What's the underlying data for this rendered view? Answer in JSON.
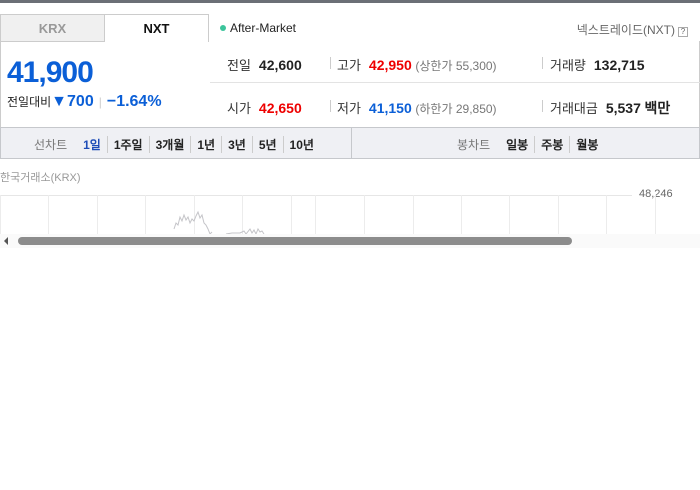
{
  "tabs": [
    {
      "label": "KRX",
      "active": false
    },
    {
      "label": "NXT",
      "active": true
    }
  ],
  "market_status": "After-Market",
  "source": "넥스트레이드(NXT)",
  "price": {
    "current": "41,900",
    "change_label": "전일대비",
    "change": "700",
    "change_pct": "−1.64%",
    "direction": "down"
  },
  "stats": {
    "prev": {
      "label": "전일",
      "value": "42,600"
    },
    "high": {
      "label": "고가",
      "value": "42,950",
      "limit_label": "상한가",
      "limit": "55,300"
    },
    "volume": {
      "label": "거래량",
      "value": "132,715"
    },
    "open": {
      "label": "시가",
      "value": "42,650"
    },
    "low": {
      "label": "저가",
      "value": "41,150",
      "limit_label": "하한가",
      "limit": "29,850"
    },
    "amount": {
      "label": "거래대금",
      "value": "5,537",
      "unit": "백만"
    }
  },
  "toolbar": {
    "line_label": "선차트",
    "line_items": [
      "1일",
      "1주일",
      "3개월",
      "1년",
      "3년",
      "5년",
      "10년"
    ],
    "candle_label": "봉차트",
    "candle_items": [
      "일봉",
      "주봉",
      "월봉"
    ]
  },
  "chart": {
    "exchange_label": "한국거래소(KRX)",
    "y_tick": "48,246"
  },
  "colors": {
    "up": "#e00000",
    "down": "#0b5fd7",
    "accent": "#1e4db7",
    "status_dot": "#3cc49b"
  }
}
